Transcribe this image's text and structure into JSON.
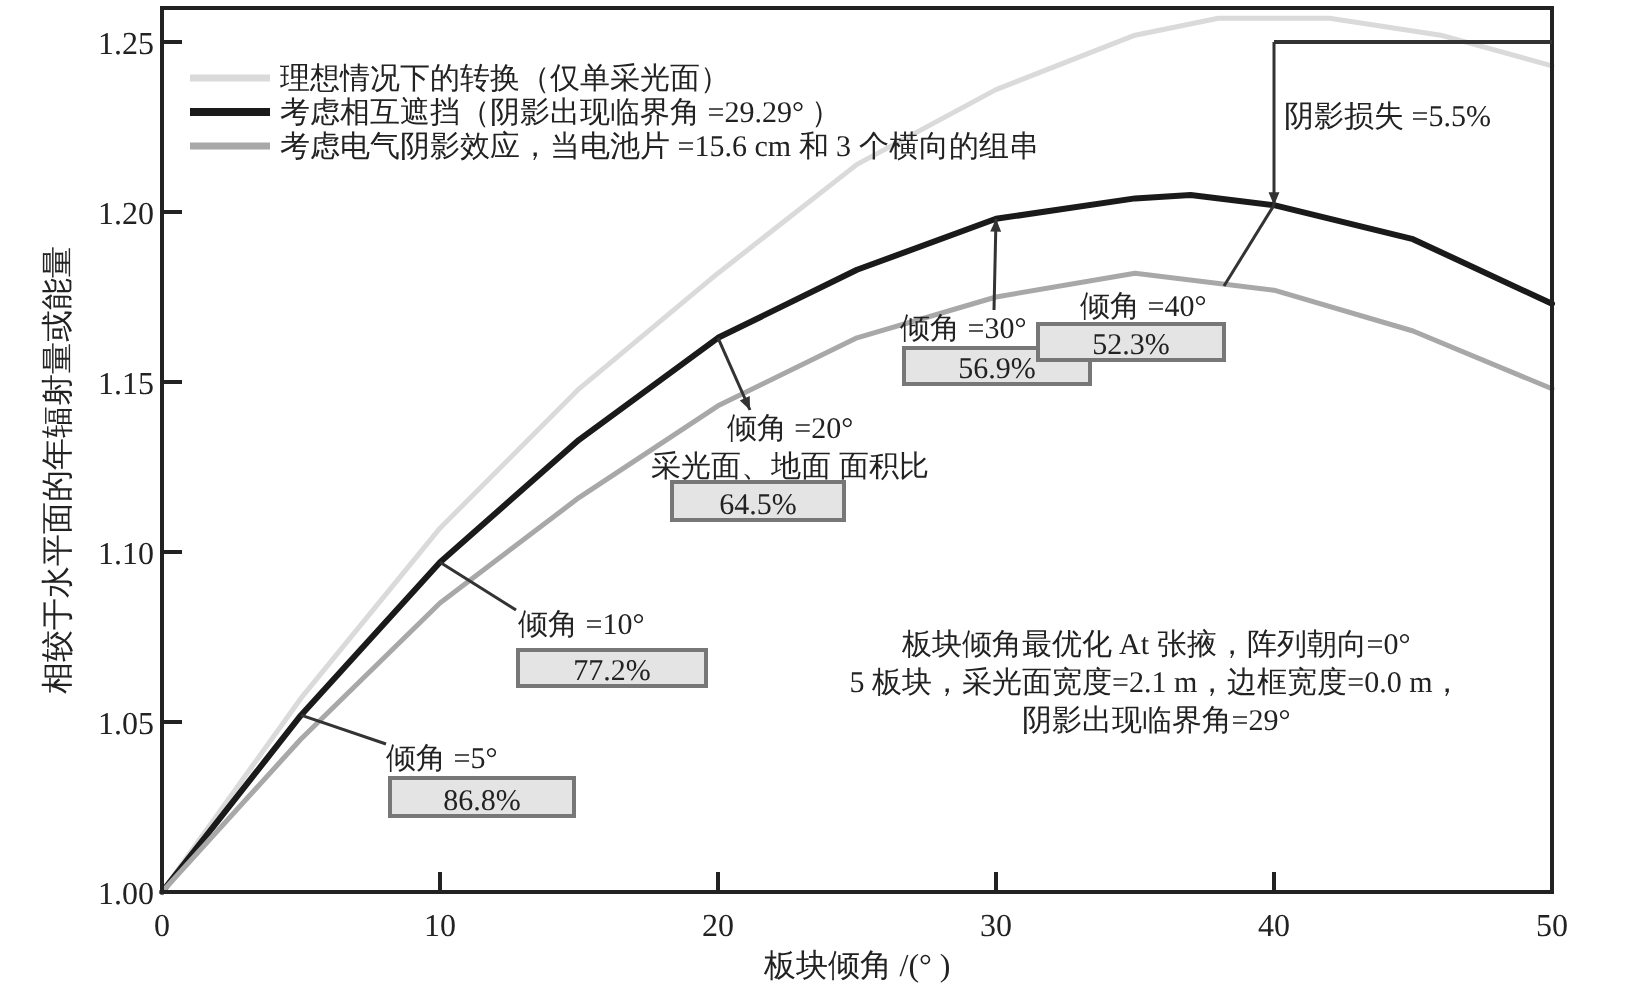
{
  "chart_data": {
    "type": "line",
    "xlabel": "板块倾角 /(° )",
    "ylabel": "相较于水平面的年辐射量或能量",
    "series": [
      {
        "name": "理想情况下的转换（仅单采光面）",
        "color": "#dadada",
        "x": [
          0,
          5,
          10,
          15,
          20,
          25,
          30,
          35,
          38,
          42,
          46,
          50
        ],
        "values": [
          1.0,
          1.057,
          1.107,
          1.148,
          1.182,
          1.214,
          1.236,
          1.252,
          1.257,
          1.257,
          1.252,
          1.243
        ]
      },
      {
        "name": "考虑相互遮挡（阴影出现临界角 =29.29° ）",
        "color": "#1a1a1a",
        "x": [
          0,
          5,
          10,
          15,
          20,
          25,
          30,
          35,
          37,
          40,
          45,
          50
        ],
        "values": [
          1.0,
          1.052,
          1.097,
          1.133,
          1.163,
          1.183,
          1.198,
          1.204,
          1.205,
          1.202,
          1.192,
          1.173
        ]
      },
      {
        "name": "考虑电气阴影效应，当电池片 =15.6 cm 和 3 个横向的组串",
        "color": "#a8a8a8",
        "x": [
          0,
          5,
          10,
          15,
          20,
          25,
          30,
          35,
          40,
          45,
          50
        ],
        "values": [
          1.0,
          1.045,
          1.085,
          1.116,
          1.143,
          1.163,
          1.175,
          1.182,
          1.177,
          1.165,
          1.148
        ]
      }
    ],
    "xlim": [
      0,
      50
    ],
    "xticks": [
      0,
      10,
      20,
      30,
      40,
      50
    ],
    "ylim": [
      1.0,
      1.26
    ],
    "yticks": [
      {
        "value": 1.0,
        "label": "1.00"
      },
      {
        "value": 1.05,
        "label": "1.05"
      },
      {
        "value": 1.1,
        "label": "1.10"
      },
      {
        "value": 1.15,
        "label": "1.15"
      },
      {
        "value": 1.2,
        "label": "1.20"
      },
      {
        "value": 1.25,
        "label": "1.25"
      }
    ],
    "grid": false,
    "legend": "top left",
    "marker": "none",
    "line_style": "solid",
    "annotations": [
      {
        "text": "倾角 =5°",
        "x": 5,
        "y": 1.052
      },
      "86.8%",
      {
        "text": "倾角 =10°",
        "x": 10,
        "y": 1.097
      },
      "77.2%",
      {
        "text": "倾角 =20°",
        "x": 20,
        "y": 1.163
      },
      "采光面、地面 面积比",
      "64.5%",
      {
        "text": "倾角 =30°",
        "x": 30,
        "y": 1.198
      },
      "56.9%",
      {
        "text": "倾角 =40°",
        "x": 40,
        "y": 1.202
      },
      "52.3%",
      "阴影损失 =5.5%",
      "板块倾角最优化 At 张掖，阵列朝向=0°",
      "5 板块，采光面宽度=2.1 m，边框宽度=0.0 m，",
      "阴影出现临界角=29°"
    ]
  }
}
